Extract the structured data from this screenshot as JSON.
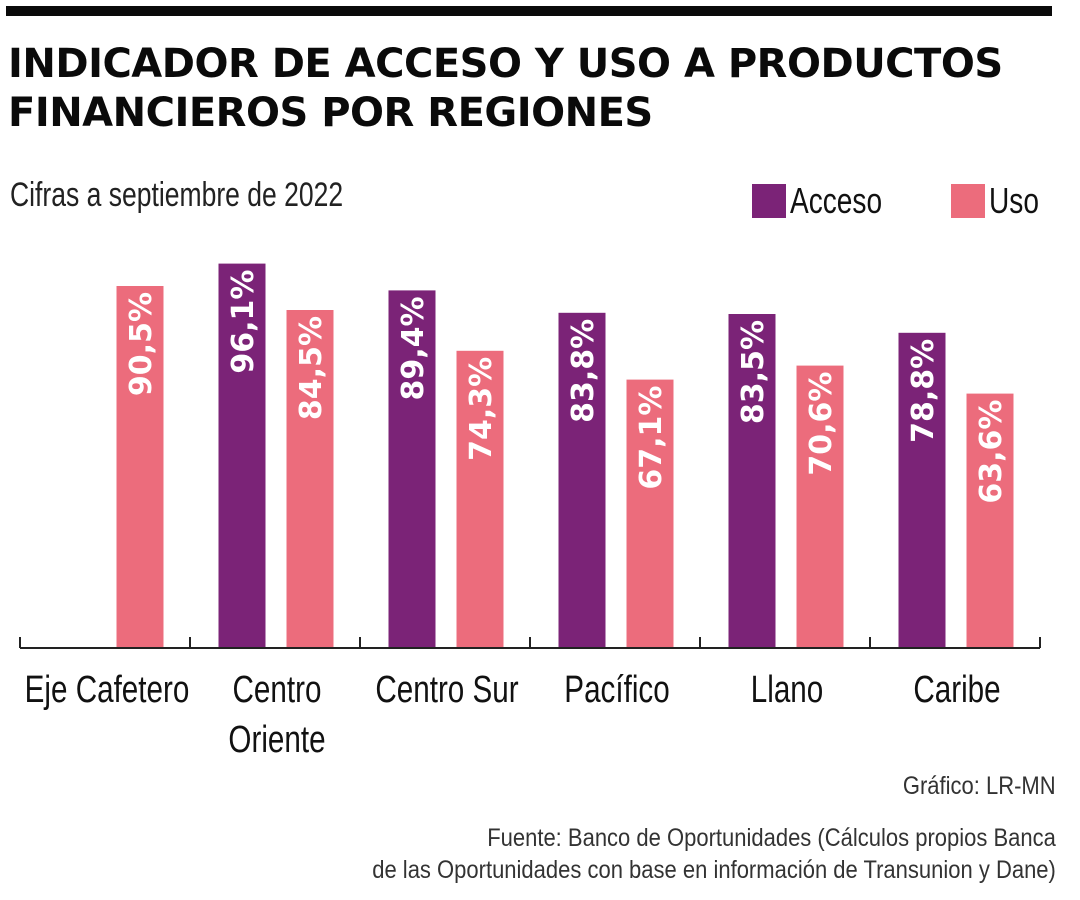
{
  "header": {
    "title_line1": "INDICADOR DE ACCESO Y USO A PRODUCTOS",
    "title_line2": "FINANCIEROS POR REGIONES",
    "subtitle": "Cifras a septiembre de 2022"
  },
  "colors": {
    "acceso": "#7b2377",
    "uso": "#ec6c7c",
    "axis": "#222222",
    "label_text": "#ffffff"
  },
  "footer": {
    "credit": "Gráfico: LR-MN",
    "source_line1": "Fuente: Banco de Oportunidades (Cálculos propios Banca",
    "source_line2": "de las Oportunidades con base en información de Transunion y Dane)"
  },
  "chart_data": {
    "type": "bar",
    "title": "INDICADOR DE ACCESO Y USO A PRODUCTOS FINANCIEROS POR REGIONES",
    "subtitle": "Cifras a septiembre de 2022",
    "xlabel": "",
    "ylabel": "",
    "ylim": [
      0,
      100
    ],
    "grid": false,
    "legend_position": "top-right",
    "categories": [
      [
        "Eje Cafetero"
      ],
      [
        "Centro",
        "Oriente"
      ],
      [
        "Centro Sur"
      ],
      [
        "Pacífico"
      ],
      [
        "Llano"
      ],
      [
        "Caribe"
      ]
    ],
    "series": [
      {
        "name": "Acceso",
        "color": "#7b2377",
        "values": [
          null,
          96.1,
          89.4,
          83.8,
          83.5,
          78.8
        ],
        "labels": [
          null,
          "96,1%",
          "89,4%",
          "83,8%",
          "83,5%",
          "78,8%"
        ]
      },
      {
        "name": "Uso",
        "color": "#ec6c7c",
        "values": [
          90.5,
          84.5,
          74.3,
          67.1,
          70.6,
          63.6
        ],
        "labels": [
          "90,5%",
          "84,5%",
          "74,3%",
          "67,1%",
          "70,6%",
          "63,6%"
        ]
      }
    ]
  }
}
